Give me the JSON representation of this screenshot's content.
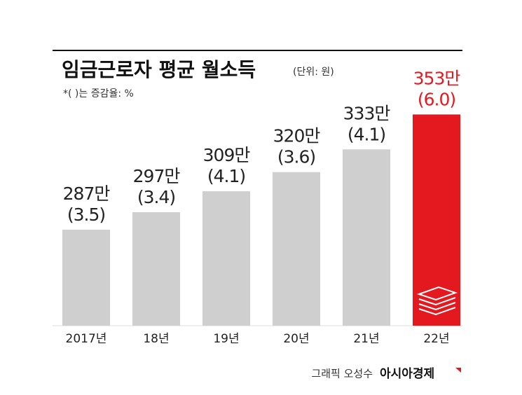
{
  "chart_data": {
    "type": "bar",
    "title": "임금근로자 평균 월소득",
    "unit_note": "(단위: 원)",
    "note": "*( )는 증감율: %",
    "credit": "그래픽 오성수",
    "source": "아시아경제",
    "categories": [
      "2017년",
      "18년",
      "19년",
      "20년",
      "21년",
      "22년"
    ],
    "values": [
      287,
      297,
      309,
      320,
      333,
      353
    ],
    "value_labels": [
      "287만",
      "297만",
      "309만",
      "320만",
      "333만",
      "353만"
    ],
    "growth": {
      "values": [
        3.5,
        3.4,
        4.1,
        3.6,
        4.1,
        6.0
      ],
      "value_labels": [
        "(3.5)",
        "(3.4)",
        "(4.1)",
        "(3.6)",
        "(4.1)",
        "(6.0)"
      ]
    },
    "colors": [
      "#cfcfcf",
      "#cfcfcf",
      "#cfcfcf",
      "#cfcfcf",
      "#cfcfcf",
      "#e3191f"
    ],
    "label_colors": [
      "#222222",
      "#222222",
      "#222222",
      "#222222",
      "#222222",
      "#e3191f"
    ],
    "ylim": [
      232,
      360
    ]
  }
}
